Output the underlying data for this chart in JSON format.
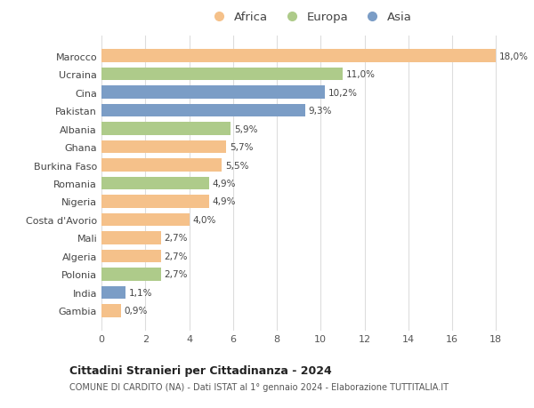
{
  "countries": [
    "Marocco",
    "Ucraina",
    "Cina",
    "Pakistan",
    "Albania",
    "Ghana",
    "Burkina Faso",
    "Romania",
    "Nigeria",
    "Costa d'Avorio",
    "Mali",
    "Algeria",
    "Polonia",
    "India",
    "Gambia"
  ],
  "values": [
    18.0,
    11.0,
    10.2,
    9.3,
    5.9,
    5.7,
    5.5,
    4.9,
    4.9,
    4.0,
    2.7,
    2.7,
    2.7,
    1.1,
    0.9
  ],
  "labels": [
    "18,0%",
    "11,0%",
    "10,2%",
    "9,3%",
    "5,9%",
    "5,7%",
    "5,5%",
    "4,9%",
    "4,9%",
    "4,0%",
    "2,7%",
    "2,7%",
    "2,7%",
    "1,1%",
    "0,9%"
  ],
  "continents": [
    "Africa",
    "Europa",
    "Asia",
    "Asia",
    "Europa",
    "Africa",
    "Africa",
    "Europa",
    "Africa",
    "Africa",
    "Africa",
    "Africa",
    "Europa",
    "Asia",
    "Africa"
  ],
  "colors": {
    "Africa": "#F5C18A",
    "Europa": "#AECB8A",
    "Asia": "#7B9DC6"
  },
  "xlim": [
    0,
    19
  ],
  "xticks": [
    0,
    2,
    4,
    6,
    8,
    10,
    12,
    14,
    16,
    18
  ],
  "title1": "Cittadini Stranieri per Cittadinanza - 2024",
  "title2": "COMUNE DI CARDITO (NA) - Dati ISTAT al 1° gennaio 2024 - Elaborazione TUTTITALIA.IT",
  "background_color": "#ffffff",
  "grid_color": "#dddddd"
}
